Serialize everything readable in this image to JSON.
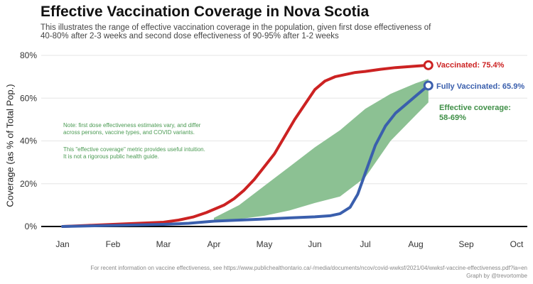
{
  "header": {
    "title": "Effective Vaccination Coverage in Nova Scotia",
    "subtitle": "This illustrates the range of effective vaccination coverage in the population, given first dose effectiveness of 40-80% after 2-3 weeks and second dose effectiveness of 90-95% after 1-2 weeks"
  },
  "notes": {
    "line1": "Note: first dose effectiveness estimates vary, and differ across persons, vaccine types, and COVID variants.",
    "line2": "This \"effective coverage\" metric provides useful intuition. It is not a rigorous public health guide."
  },
  "footer": {
    "source": "For recent information on vaccine effectiveness, see https://www.publichealthontario.ca/-/media/documents/ncov/covid-wwksf/2021/04/wwksf-vaccine-effectiveness.pdf?la=en",
    "credit": "Graph by @trevortombe"
  },
  "labels": {
    "vaccinated": "Vaccinated: 75.4%",
    "fully_vaccinated": "Fully Vaccinated: 65.9%",
    "effective_title": "Effective coverage:",
    "effective_range": "58-69%"
  },
  "colors": {
    "vaccinated": "#cc2222",
    "fully_vaccinated": "#3a5fad",
    "effective": "#8cc193",
    "effective_text": "#3f8f47",
    "baseline": "#000000",
    "grid": "#e6e6e6"
  },
  "chart_data": {
    "type": "line",
    "title": "Effective Vaccination Coverage in Nova Scotia",
    "xlabel": "",
    "ylabel": "Coverage (as % of Total Pop.)",
    "x_unit": "month (1 = Jan 1)",
    "xlim": [
      1,
      10
    ],
    "ylim": [
      0,
      80
    ],
    "x_ticks": [
      {
        "v": 1,
        "label": "Jan"
      },
      {
        "v": 2,
        "label": "Feb"
      },
      {
        "v": 3,
        "label": "Mar"
      },
      {
        "v": 4,
        "label": "Apr"
      },
      {
        "v": 5,
        "label": "May"
      },
      {
        "v": 6,
        "label": "Jun"
      },
      {
        "v": 7,
        "label": "Jul"
      },
      {
        "v": 8,
        "label": "Aug"
      },
      {
        "v": 9,
        "label": "Sep"
      },
      {
        "v": 10,
        "label": "Oct"
      }
    ],
    "y_ticks": [
      {
        "v": 0,
        "label": "0%"
      },
      {
        "v": 20,
        "label": "20%"
      },
      {
        "v": 40,
        "label": "40%"
      },
      {
        "v": 60,
        "label": "60%"
      },
      {
        "v": 80,
        "label": "80%"
      }
    ],
    "grid": "horizontal",
    "series": [
      {
        "name": "Vaccinated",
        "kind": "line",
        "x": [
          1.0,
          1.5,
          2.0,
          2.5,
          3.0,
          3.3,
          3.6,
          3.85,
          4.0,
          4.2,
          4.4,
          4.6,
          4.8,
          5.0,
          5.2,
          5.4,
          5.6,
          5.8,
          6.0,
          6.2,
          6.4,
          6.6,
          6.8,
          7.0,
          7.3,
          7.6,
          8.0,
          8.25
        ],
        "y": [
          0.0,
          0.5,
          1.0,
          1.5,
          2.0,
          3.0,
          4.5,
          6.5,
          8.0,
          10.0,
          13.0,
          17.0,
          22.0,
          28.0,
          34.0,
          42.0,
          50.0,
          57.0,
          64.0,
          68.0,
          70.0,
          71.0,
          72.0,
          72.5,
          73.5,
          74.3,
          75.0,
          75.4
        ]
      },
      {
        "name": "Fully Vaccinated",
        "kind": "line",
        "x": [
          1.0,
          2.0,
          3.0,
          3.5,
          4.0,
          4.5,
          5.0,
          5.5,
          6.0,
          6.3,
          6.5,
          6.7,
          6.85,
          7.0,
          7.2,
          7.4,
          7.6,
          7.8,
          8.0,
          8.15,
          8.25
        ],
        "y": [
          0.0,
          0.5,
          1.0,
          1.5,
          2.5,
          3.0,
          3.5,
          4.0,
          4.5,
          5.0,
          6.0,
          9.0,
          15.0,
          25.0,
          38.0,
          47.0,
          53.0,
          57.0,
          61.0,
          64.0,
          65.9
        ]
      },
      {
        "name": "Effective coverage",
        "kind": "band",
        "x": [
          4.0,
          4.5,
          5.0,
          5.5,
          6.0,
          6.5,
          7.0,
          7.5,
          8.0,
          8.25
        ],
        "low": [
          2.5,
          3.5,
          5.0,
          7.5,
          11.0,
          14.0,
          23.0,
          40.0,
          52.0,
          58.0
        ],
        "high": [
          4.0,
          10.0,
          19.0,
          28.0,
          37.0,
          45.0,
          55.0,
          62.0,
          67.0,
          69.0
        ]
      }
    ]
  }
}
